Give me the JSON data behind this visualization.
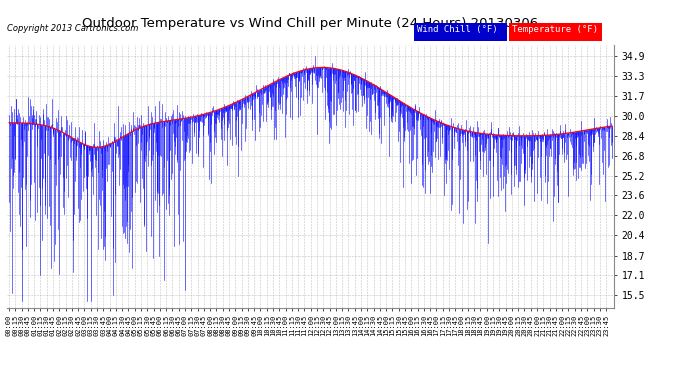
{
  "title": "Outdoor Temperature vs Wind Chill per Minute (24 Hours) 20130306",
  "copyright": "Copyright 2013 Cartronics.com",
  "yticks": [
    15.5,
    17.1,
    18.7,
    20.4,
    22.0,
    23.6,
    25.2,
    26.8,
    28.4,
    30.0,
    31.7,
    33.3,
    34.9
  ],
  "ylim": [
    14.5,
    35.8
  ],
  "wind_chill_color": "#0000FF",
  "temperature_color": "#FF0000",
  "background_color": "#FFFFFF",
  "plot_bg_color": "#FFFFFF",
  "grid_color": "#AAAAAA",
  "title_fontsize": 10,
  "legend_wind_chill_bg": "#0000CC",
  "legend_temp_bg": "#FF0000",
  "legend_text_color": "#FFFFFF"
}
